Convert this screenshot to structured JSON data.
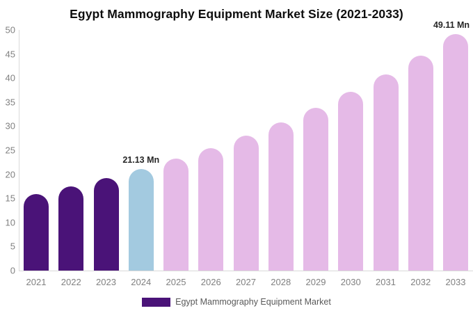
{
  "chart_data": {
    "type": "bar",
    "title": "Egypt Mammography Equipment Market Size (2021-2033)",
    "unit": "Mn",
    "categories": [
      "2021",
      "2022",
      "2023",
      "2024",
      "2025",
      "2026",
      "2027",
      "2028",
      "2029",
      "2030",
      "2031",
      "2032",
      "2033"
    ],
    "values": [
      15.95,
      17.52,
      19.24,
      21.13,
      23.2,
      25.48,
      27.99,
      30.74,
      33.76,
      37.07,
      40.72,
      44.72,
      49.11
    ],
    "bar_colors": [
      "#4a1378",
      "#4a1378",
      "#4a1378",
      "#a3cae0",
      "#e5bae7",
      "#e5bae7",
      "#e5bae7",
      "#e5bae7",
      "#e5bae7",
      "#e5bae7",
      "#e5bae7",
      "#e5bae7",
      "#e5bae7"
    ],
    "annotations": [
      {
        "category": "2024",
        "text": "21.13 Mn"
      },
      {
        "category": "2033",
        "text": "49.11 Mn"
      }
    ],
    "y_ticks": [
      0,
      5,
      10,
      15,
      20,
      25,
      30,
      35,
      40,
      45,
      50
    ],
    "ylim": [
      0,
      50
    ],
    "xlabel": "",
    "ylabel": "",
    "grid": false,
    "legend_position": "bottom",
    "legend": [
      {
        "label": "Egypt Mammography Equipment Market",
        "color": "#4a1378"
      }
    ],
    "colors": {
      "historical_bar": "#4a1378",
      "base_year_bar": "#a3cae0",
      "forecast_bar": "#e5bae7",
      "axis_line": "#d9d9d9",
      "tick_label": "#808080",
      "title_text": "#0d0d0d",
      "annotation_text": "#262626",
      "legend_text": "#595959"
    }
  }
}
